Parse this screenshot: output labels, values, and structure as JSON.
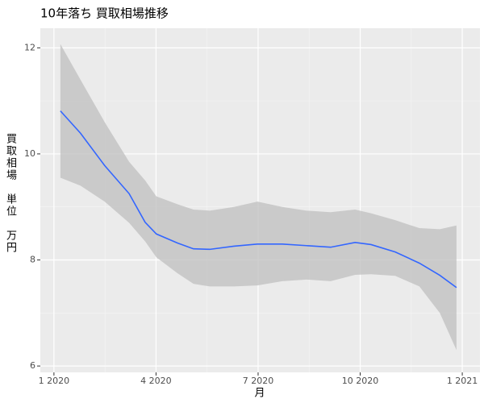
{
  "chart_data": {
    "type": "line",
    "title": "10年落ち 買取相場推移",
    "x_label": "月",
    "y_label": "買取相場　単位　万円",
    "color": "#3366ff",
    "band_color": "#bfbfbf",
    "x": [
      0.19,
      0.78,
      1.49,
      2.21,
      2.68,
      3.01,
      3.63,
      4.1,
      4.58,
      5.29,
      5.98,
      6.71,
      7.42,
      8.13,
      8.85,
      9.32,
      10.03,
      10.74,
      11.34,
      11.83
    ],
    "values": [
      10.81,
      10.39,
      9.78,
      9.25,
      8.71,
      8.49,
      8.32,
      8.21,
      8.2,
      8.26,
      8.3,
      8.3,
      8.27,
      8.24,
      8.33,
      8.29,
      8.15,
      7.94,
      7.71,
      7.48
    ],
    "upper": [
      12.07,
      11.4,
      10.6,
      9.85,
      9.5,
      9.2,
      9.05,
      8.95,
      8.93,
      9.0,
      9.1,
      9.0,
      8.93,
      8.9,
      8.95,
      8.88,
      8.75,
      8.6,
      8.58,
      8.65
    ],
    "lower": [
      9.55,
      9.4,
      9.1,
      8.7,
      8.35,
      8.05,
      7.75,
      7.55,
      7.5,
      7.5,
      7.52,
      7.6,
      7.63,
      7.6,
      7.72,
      7.73,
      7.7,
      7.5,
      7.0,
      6.3
    ],
    "xlim": [
      -0.4,
      12.52
    ],
    "ylim": [
      5.88,
      12.37
    ],
    "xticks": [
      {
        "value": 0,
        "label": "1 2020"
      },
      {
        "value": 3,
        "label": "4 2020"
      },
      {
        "value": 6,
        "label": "7 2020"
      },
      {
        "value": 9,
        "label": "10 2020"
      },
      {
        "value": 12,
        "label": "1 2021"
      }
    ],
    "yticks": [
      6,
      8,
      10,
      12
    ]
  }
}
